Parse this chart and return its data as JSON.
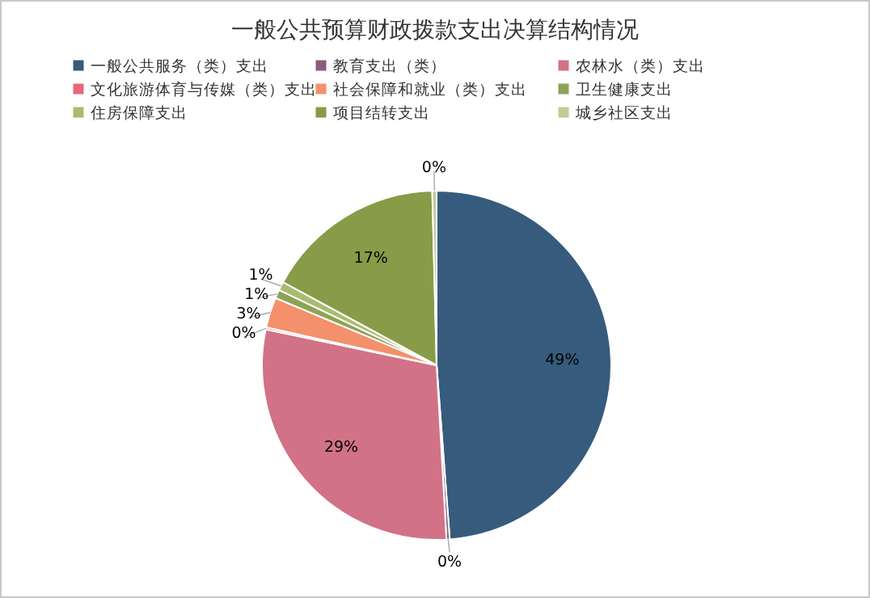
{
  "chart_data": {
    "type": "pie",
    "title": "一般公共预算财政拨款支出决算结构情况",
    "categories": [
      "一般公共服务（类）支出",
      "教育支出（类）",
      "农林水（类）支出",
      "文化旅游体育与传媒（类）支出",
      "社会保障和就业（类）支出",
      "卫生健康支出",
      "住房保障支出",
      "项目结转支出",
      "城乡社区支出"
    ],
    "values": [
      48.8,
      0.3,
      29.2,
      0.2,
      2.8,
      0.8,
      0.8,
      16.7,
      0.4
    ],
    "value_labels": [
      "49%",
      "0%",
      "29%",
      "0%",
      "3%",
      "1%",
      "1%",
      "17%",
      "0%"
    ],
    "colors": [
      "#365b7c",
      "#8c5c7c",
      "#d27287",
      "#e8687c",
      "#f4906c",
      "#8ea356",
      "#a9bb72",
      "#879b48",
      "#c3cc96"
    ],
    "legend": "top"
  }
}
